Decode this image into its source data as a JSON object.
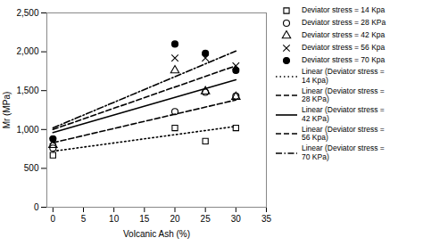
{
  "chart_data": {
    "type": "scatter",
    "xlabel": "Volcanic Ash (%)",
    "ylabel": "Mr (MPa)",
    "xlim": [
      -1,
      35
    ],
    "ylim": [
      0,
      2500
    ],
    "xticks": [
      0,
      5,
      10,
      15,
      20,
      25,
      30,
      35
    ],
    "yticks": [
      0,
      500,
      1000,
      1500,
      2000,
      2500
    ],
    "color": "black",
    "legend": "right",
    "series": [
      {
        "name": "Deviator stress = 14 Kpa",
        "type": "scatter",
        "marker": "square",
        "x": [
          0,
          20,
          25,
          30
        ],
        "values": [
          670,
          1020,
          850,
          1020
        ]
      },
      {
        "name": "Deviator stress = 28 KPa",
        "type": "scatter",
        "marker": "circle",
        "x": [
          0,
          20,
          25,
          30
        ],
        "values": [
          760,
          1230,
          1480,
          1430
        ]
      },
      {
        "name": "Deviator stress = 42 Kpa",
        "type": "scatter",
        "marker": "triangle",
        "x": [
          0,
          20,
          25,
          30
        ],
        "values": [
          800,
          1760,
          1490,
          1420
        ]
      },
      {
        "name": "Deviator stress = 56 Kpa",
        "type": "scatter",
        "marker": "times",
        "x": [
          0,
          20,
          25,
          30
        ],
        "values": [
          850,
          1920,
          1920,
          1820
        ]
      },
      {
        "name": "Deviator stress = 70 Kpa",
        "type": "scatter",
        "marker": "disc",
        "x": [
          0,
          20,
          25,
          30
        ],
        "values": [
          880,
          2100,
          1980,
          1760
        ]
      },
      {
        "name": "Linear (Deviator stress =\n14 Kpa)",
        "type": "line",
        "line_style": "dotted",
        "x": [
          0,
          30
        ],
        "values": [
          720,
          1040
        ]
      },
      {
        "name": "Linear (Deviator stress =\n28 KPa)",
        "type": "line",
        "line_style": "dashed",
        "x": [
          0,
          30
        ],
        "values": [
          830,
          1380
        ]
      },
      {
        "name": "Linear (Deviator stress =\n42 KPa)",
        "type": "line",
        "line_style": "solid",
        "x": [
          0,
          30
        ],
        "values": [
          960,
          1640
        ]
      },
      {
        "name": "Linear (Deviator stress =\n56 Kpa)",
        "type": "line",
        "line_style": "dashed",
        "x": [
          0,
          30
        ],
        "values": [
          1000,
          1820
        ]
      },
      {
        "name": "Linear (Deviator stress =\n70 KPa)",
        "type": "line",
        "line_style": "dashdot",
        "x": [
          0,
          30
        ],
        "values": [
          1020,
          2010
        ]
      }
    ]
  }
}
